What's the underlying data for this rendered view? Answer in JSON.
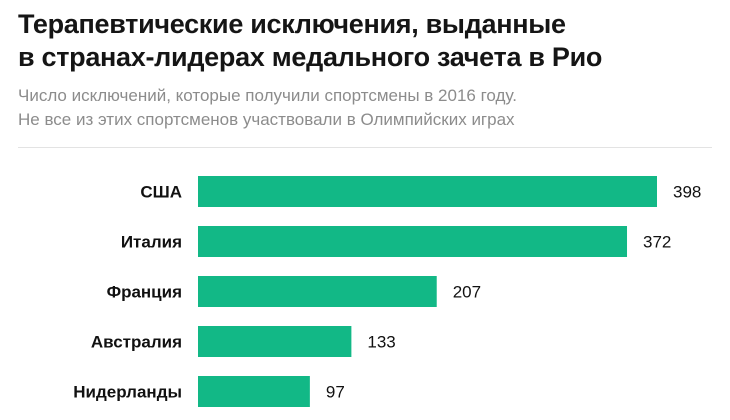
{
  "header": {
    "title_line1": "Терапевтические исключения, выданные",
    "title_line2": "в странах-лидерах медального зачета в Рио",
    "subtitle_line1": "Число исключений, которые получили спортсмены в 2016 году.",
    "subtitle_line2": "Не все из этих спортсменов участвовали в Олимпийских играх"
  },
  "chart_data": {
    "type": "bar",
    "orientation": "horizontal",
    "title": "Терапевтические исключения, выданные в странах-лидерах медального зачета в Рио",
    "subtitle": "Число исключений, которые получили спортсмены в 2016 году. Не все из этих спортсменов участвовали в Олимпийских играх",
    "categories": [
      "США",
      "Италия",
      "Франция",
      "Австралия",
      "Нидерланды"
    ],
    "values": [
      398,
      372,
      207,
      133,
      97
    ],
    "xlabel": "",
    "ylabel": "",
    "xlim": [
      0,
      398
    ],
    "grid": false,
    "bar_color": "#12b886"
  }
}
